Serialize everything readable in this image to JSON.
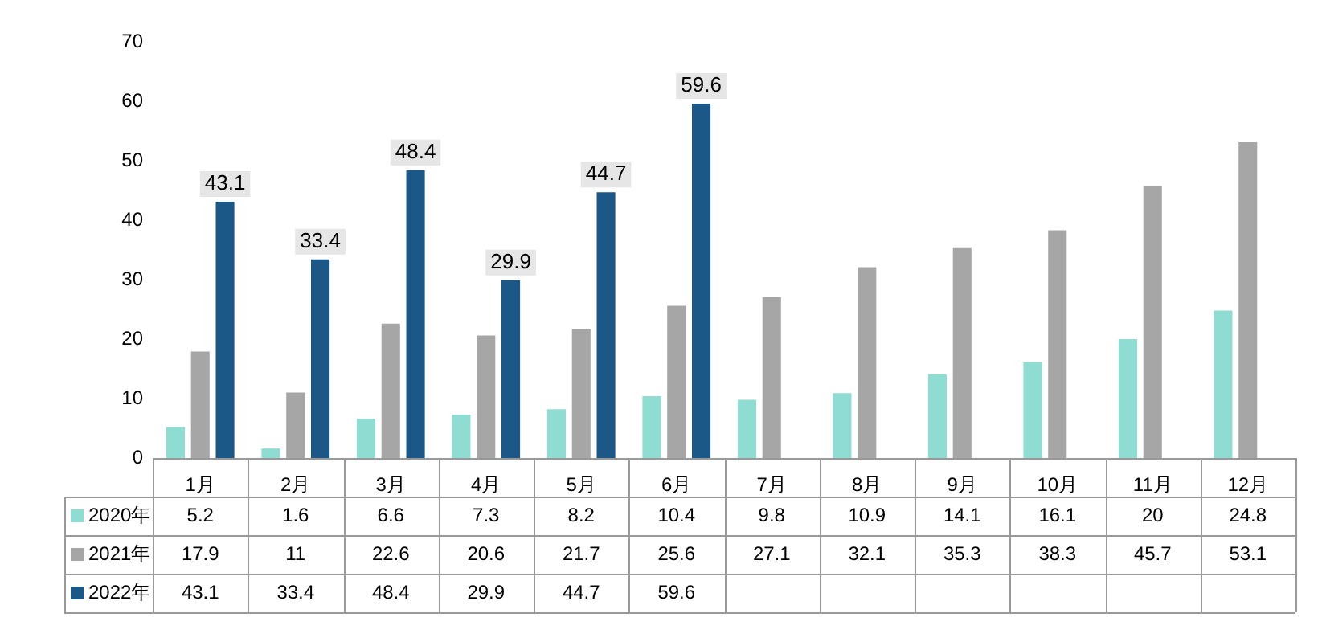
{
  "chart_data": {
    "type": "bar",
    "categories": [
      "1月",
      "2月",
      "3月",
      "4月",
      "5月",
      "6月",
      "7月",
      "8月",
      "9月",
      "10月",
      "11月",
      "12月"
    ],
    "series": [
      {
        "name": "2020年",
        "color": "#8fdcd2",
        "values": [
          5.2,
          1.6,
          6.6,
          7.3,
          8.2,
          10.4,
          9.8,
          10.9,
          14.1,
          16.1,
          20,
          24.8
        ]
      },
      {
        "name": "2021年",
        "color": "#a6a6a6",
        "values": [
          17.9,
          11,
          22.6,
          20.6,
          21.7,
          25.6,
          27.1,
          32.1,
          35.3,
          38.3,
          45.7,
          53.1
        ]
      },
      {
        "name": "2022年",
        "color": "#1b5887",
        "values": [
          43.1,
          33.4,
          48.4,
          29.9,
          44.7,
          59.6,
          null,
          null,
          null,
          null,
          null,
          null
        ]
      }
    ],
    "annotations": [
      "43.1",
      "33.4",
      "48.4",
      "29.9",
      "44.7",
      "59.6"
    ],
    "ylim": [
      0,
      70
    ],
    "yticks": [
      0,
      10,
      20,
      30,
      40,
      50,
      60,
      70
    ],
    "grid": false,
    "legend": "bottom left",
    "data_labels": true
  }
}
